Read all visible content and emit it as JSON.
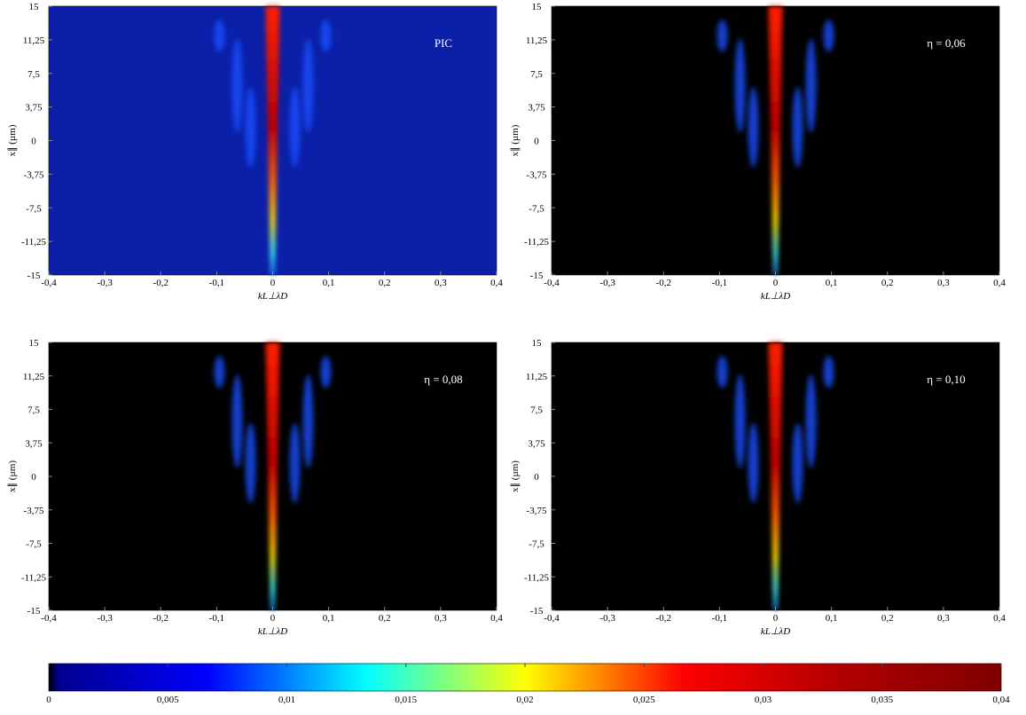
{
  "chart_data": [
    {
      "type": "heatmap",
      "background": "#0b1fa8",
      "annotation": "PIC",
      "xlim": [
        -0.4,
        0.4
      ],
      "ylim": [
        -15,
        15
      ],
      "xticks": [
        {
          "value": -0.4,
          "label": "-0,4"
        },
        {
          "value": -0.3,
          "label": "-0,3"
        },
        {
          "value": -0.2,
          "label": "-0,2"
        },
        {
          "value": -0.1,
          "label": "-0,1"
        },
        0,
        {
          "value": 0.1,
          "label": "0,1"
        },
        {
          "value": 0.2,
          "label": "0,2"
        },
        {
          "value": 0.3,
          "label": "0,3"
        },
        {
          "value": 0.4,
          "label": "0,4"
        }
      ],
      "yticks": [
        15,
        {
          "value": 11.25,
          "label": "11,25"
        },
        {
          "value": 7.5,
          "label": "7,5"
        },
        {
          "value": 3.75,
          "label": "3,75"
        },
        0,
        {
          "value": -3.75,
          "label": "-3,75"
        },
        {
          "value": -7.5,
          "label": "-7,5"
        },
        {
          "value": -11.25,
          "label": "-11,25"
        },
        -15
      ],
      "x_label": "kL⊥λD",
      "y_label": "x∥ (µm)"
    },
    {
      "type": "heatmap",
      "background": "#000000",
      "annotation": "η = 0,06",
      "xlim": [
        -0.4,
        0.4
      ],
      "ylim": [
        -15,
        15
      ],
      "xticks": [
        {
          "value": -0.4,
          "label": "-0,4"
        },
        {
          "value": -0.3,
          "label": "-0,3"
        },
        {
          "value": -0.2,
          "label": "-0,2"
        },
        {
          "value": -0.1,
          "label": "-0,1"
        },
        0,
        {
          "value": 0.1,
          "label": "0,1"
        },
        {
          "value": 0.2,
          "label": "0,2"
        },
        {
          "value": 0.3,
          "label": "0,3"
        },
        {
          "value": 0.4,
          "label": "0,4"
        }
      ],
      "yticks": [
        15,
        {
          "value": 11.25,
          "label": "11,25"
        },
        {
          "value": 7.5,
          "label": "7,5"
        },
        {
          "value": 3.75,
          "label": "3,75"
        },
        0,
        {
          "value": -3.75,
          "label": "-3,75"
        },
        {
          "value": -7.5,
          "label": "-7,5"
        },
        {
          "value": -11.25,
          "label": "-11,25"
        },
        -15
      ],
      "x_label": "kL⊥λD",
      "y_label": "x∥ (µm)"
    },
    {
      "type": "heatmap",
      "background": "#000000",
      "annotation": "η = 0,08",
      "xlim": [
        -0.4,
        0.4
      ],
      "ylim": [
        -15,
        15
      ],
      "xticks": [
        {
          "value": -0.4,
          "label": "-0,4"
        },
        {
          "value": -0.3,
          "label": "-0,3"
        },
        {
          "value": -0.2,
          "label": "-0,2"
        },
        {
          "value": -0.1,
          "label": "-0,1"
        },
        0,
        {
          "value": 0.1,
          "label": "0,1"
        },
        {
          "value": 0.2,
          "label": "0,2"
        },
        {
          "value": 0.3,
          "label": "0,3"
        },
        {
          "value": 0.4,
          "label": "0,4"
        }
      ],
      "yticks": [
        15,
        {
          "value": 11.25,
          "label": "11,25"
        },
        {
          "value": 7.5,
          "label": "7,5"
        },
        {
          "value": 3.75,
          "label": "3,75"
        },
        0,
        {
          "value": -3.75,
          "label": "-3,75"
        },
        {
          "value": -7.5,
          "label": "-7,5"
        },
        {
          "value": -11.25,
          "label": "-11,25"
        },
        -15
      ],
      "x_label": "kL⊥λD",
      "y_label": "x∥ (µm)"
    },
    {
      "type": "heatmap",
      "background": "#000000",
      "annotation": "η = 0,10",
      "xlim": [
        -0.4,
        0.4
      ],
      "ylim": [
        -15,
        15
      ],
      "xticks": [
        {
          "value": -0.4,
          "label": "-0,4"
        },
        {
          "value": -0.3,
          "label": "-0,3"
        },
        {
          "value": -0.2,
          "label": "-0,2"
        },
        {
          "value": -0.1,
          "label": "-0,1"
        },
        0,
        {
          "value": 0.1,
          "label": "0,1"
        },
        {
          "value": 0.2,
          "label": "0,2"
        },
        {
          "value": 0.3,
          "label": "0,3"
        },
        {
          "value": 0.4,
          "label": "0,4"
        }
      ],
      "yticks": [
        15,
        {
          "value": 11.25,
          "label": "11,25"
        },
        {
          "value": 7.5,
          "label": "7,5"
        },
        {
          "value": 3.75,
          "label": "3,75"
        },
        0,
        {
          "value": -3.75,
          "label": "-3,75"
        },
        {
          "value": -7.5,
          "label": "-7,5"
        },
        {
          "value": -11.25,
          "label": "-11,25"
        },
        -15
      ],
      "x_label": "kL⊥λD",
      "y_label": "x∥ (µm)"
    },
    {
      "type": "colorbar",
      "colors": [
        "#000000",
        "#00008f",
        "#0000ff",
        "#00ffff",
        "#ffff00",
        "#ff0000",
        "#b00000",
        "#800000"
      ],
      "xlim": [
        0,
        0.04
      ],
      "xticks": [
        0,
        {
          "value": 0.005,
          "label": "0,005"
        },
        {
          "value": 0.01,
          "label": "0,01"
        },
        {
          "value": 0.015,
          "label": "0,015"
        },
        {
          "value": 0.02,
          "label": "0,02"
        },
        {
          "value": 0.025,
          "label": "0,025"
        },
        {
          "value": 0.03,
          "label": "0,03"
        },
        {
          "value": 0.035,
          "label": "0,035"
        },
        {
          "value": 0.04,
          "label": "0,04"
        }
      ]
    }
  ]
}
